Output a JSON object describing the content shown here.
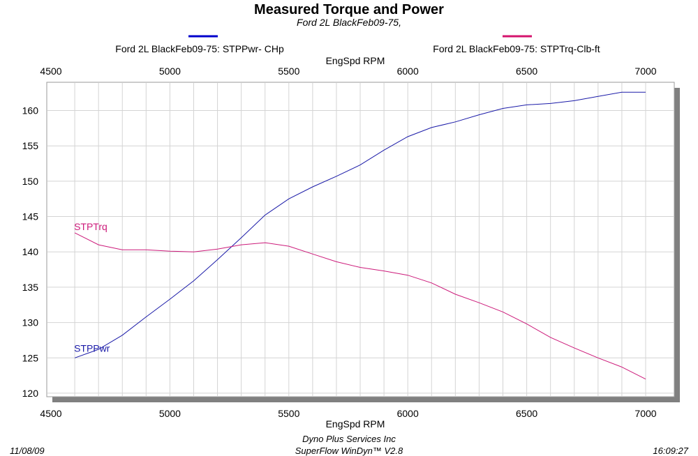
{
  "chart_data": {
    "type": "line",
    "title": "Measured Torque and Power",
    "subtitle": "Ford 2L BlackFeb09-75,",
    "xlabel": "EngSpd  RPM",
    "x_ticks": [
      4500,
      5000,
      5500,
      6000,
      6500,
      7000
    ],
    "xlim": [
      4500,
      7000
    ],
    "y_ticks": [
      120,
      125,
      130,
      135,
      140,
      145,
      150,
      155,
      160
    ],
    "ylim": [
      119.5,
      164
    ],
    "grid": true,
    "legend_position": "top",
    "x": [
      4600,
      4700,
      4800,
      4900,
      5000,
      5100,
      5200,
      5300,
      5400,
      5500,
      5600,
      5700,
      5800,
      5900,
      6000,
      6100,
      6200,
      6300,
      6400,
      6500,
      6600,
      6700,
      6800,
      6900,
      7000
    ],
    "series": [
      {
        "name": "Ford 2L BlackFeb09-75: STPPwr- CHp",
        "label": "STPPwr",
        "color": "#1a1aa8",
        "legend_color": "#0000cc",
        "values": [
          125.0,
          126.2,
          128.2,
          130.8,
          133.3,
          135.9,
          138.9,
          142.0,
          145.2,
          147.5,
          149.2,
          150.7,
          152.3,
          154.4,
          156.3,
          157.6,
          158.4,
          159.4,
          160.3,
          160.8,
          161.0,
          161.4,
          162.0,
          162.6,
          162.6
        ]
      },
      {
        "name": "Ford 2L BlackFeb09-75: STPTrq-Clb-ft",
        "label": "STPTrq",
        "color": "#cc1a7a",
        "legend_color": "#d4146e",
        "values": [
          142.7,
          141.0,
          140.3,
          140.3,
          140.1,
          140.0,
          140.4,
          141.0,
          141.3,
          140.8,
          139.7,
          138.6,
          137.8,
          137.3,
          136.7,
          135.6,
          134.0,
          132.8,
          131.5,
          129.8,
          127.9,
          126.4,
          125.0,
          123.7,
          122.0
        ]
      }
    ]
  },
  "footer": {
    "date": "11/08/09",
    "company": "Dyno Plus Services Inc",
    "software": "SuperFlow WinDyn™ V2.8",
    "time": "16:09:27"
  }
}
